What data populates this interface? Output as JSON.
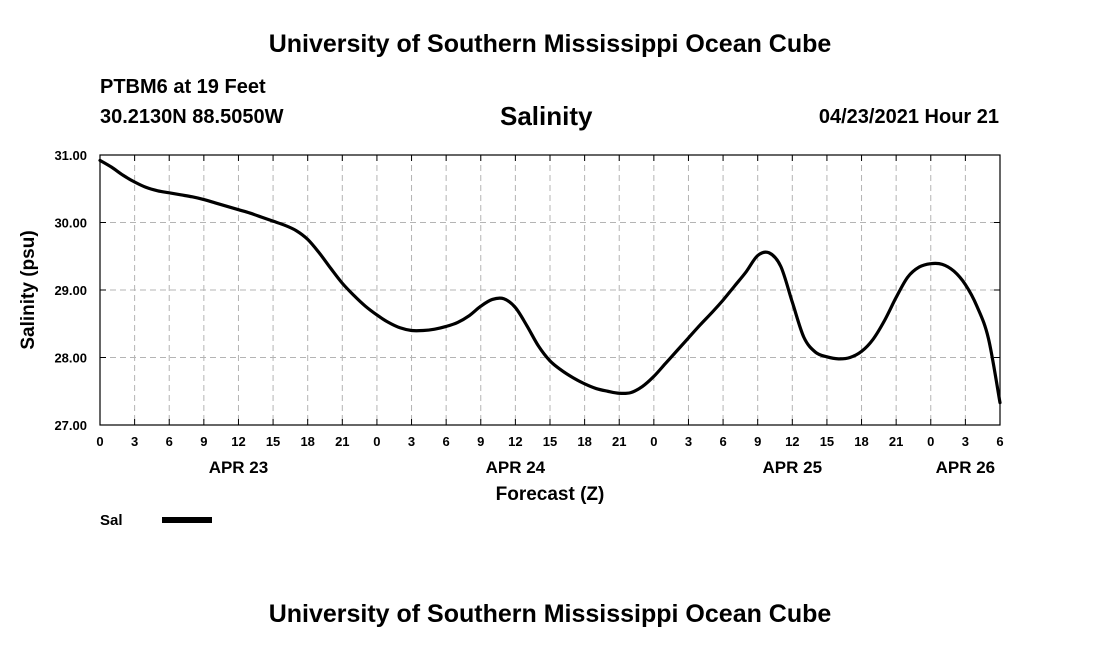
{
  "header": {
    "title": "University of Southern Mississippi Ocean Cube",
    "station": "PTBM6 at 19 Feet",
    "location": "30.2130N  88.5050W",
    "datetime": "04/23/2021 Hour 21"
  },
  "footer": {
    "title": "University of Southern Mississippi Ocean Cube"
  },
  "legend": {
    "label": "Sal"
  },
  "chart_data": {
    "type": "line",
    "title": "Salinity",
    "xlabel": "Forecast (Z)",
    "ylabel": "Salinity (psu)",
    "ylim": [
      27.0,
      31.0
    ],
    "yticks": [
      "31.00",
      "30.00",
      "29.00",
      "28.00",
      "27.00"
    ],
    "xlim_hours": [
      0,
      78
    ],
    "xtick_labels": [
      "0",
      "3",
      "6",
      "9",
      "12",
      "15",
      "18",
      "21",
      "0",
      "3",
      "6",
      "9",
      "12",
      "15",
      "18",
      "21",
      "0",
      "3",
      "6",
      "9",
      "12",
      "15",
      "18",
      "21",
      "0",
      "3",
      "6"
    ],
    "day_labels": [
      {
        "label": "APR 23",
        "hour": 12
      },
      {
        "label": "APR 24",
        "hour": 36
      },
      {
        "label": "APR 25",
        "hour": 60
      },
      {
        "label": "APR 26",
        "hour": 75
      }
    ],
    "grid": true,
    "series": [
      {
        "name": "Sal",
        "x": [
          0,
          1,
          2,
          3,
          4,
          5,
          6,
          7,
          8,
          9,
          10,
          11,
          12,
          13,
          14,
          15,
          16,
          17,
          18,
          19,
          20,
          21,
          22,
          23,
          24,
          25,
          26,
          27,
          28,
          29,
          30,
          31,
          32,
          33,
          34,
          35,
          36,
          37,
          38,
          39,
          40,
          41,
          42,
          43,
          44,
          45,
          46,
          47,
          48,
          49,
          50,
          51,
          52,
          53,
          54,
          55,
          56,
          57,
          58,
          59,
          60,
          61,
          62,
          63,
          64,
          65,
          66,
          67,
          68,
          69,
          70,
          71,
          72,
          73,
          74,
          75,
          76,
          77,
          78
        ],
        "values": [
          30.92,
          30.82,
          30.7,
          30.6,
          30.52,
          30.47,
          30.44,
          30.41,
          30.38,
          30.34,
          30.29,
          30.24,
          30.19,
          30.14,
          30.08,
          30.02,
          29.96,
          29.88,
          29.75,
          29.55,
          29.32,
          29.1,
          28.92,
          28.76,
          28.63,
          28.52,
          28.44,
          28.4,
          28.4,
          28.42,
          28.46,
          28.52,
          28.62,
          28.76,
          28.86,
          28.87,
          28.74,
          28.47,
          28.17,
          27.95,
          27.81,
          27.7,
          27.61,
          27.54,
          27.5,
          27.47,
          27.48,
          27.57,
          27.72,
          27.91,
          28.1,
          28.29,
          28.48,
          28.66,
          28.85,
          29.06,
          29.27,
          29.51,
          29.55,
          29.35,
          28.82,
          28.3,
          28.08,
          28.01,
          27.98,
          28.0,
          28.09,
          28.27,
          28.55,
          28.89,
          29.19,
          29.34,
          29.39,
          29.38,
          29.28,
          29.08,
          28.76,
          28.28,
          27.33
        ]
      }
    ],
    "colors": {
      "line": "#000000",
      "grid": "#b4b4b4"
    }
  }
}
